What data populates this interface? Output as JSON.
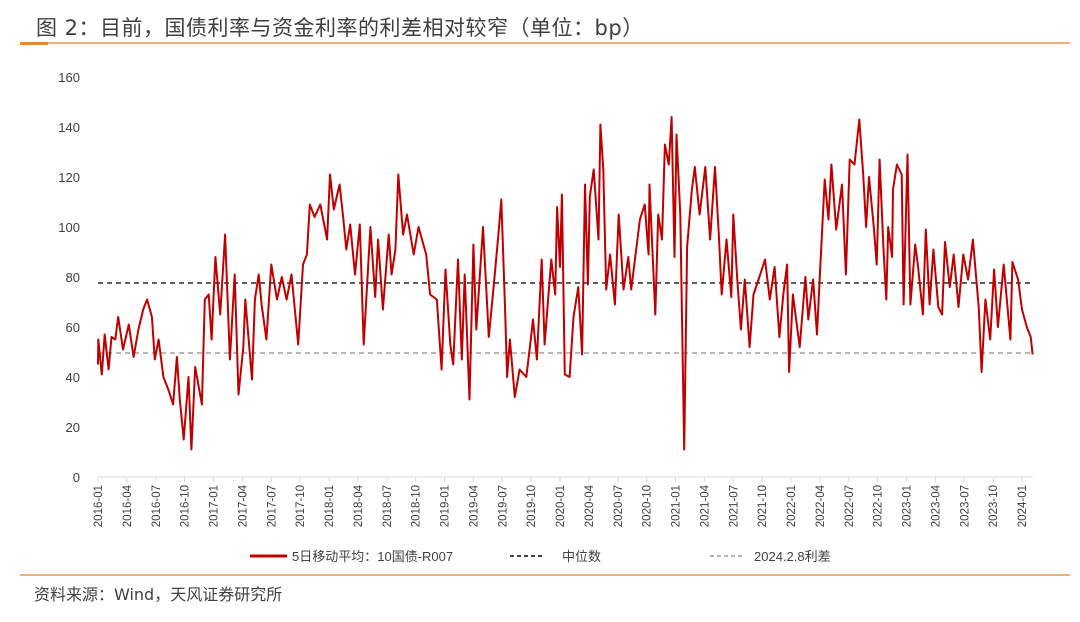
{
  "header": {
    "title": "图 2：目前，国债利率与资金利率的利差相对较窄（单位：bp）"
  },
  "footer": {
    "source": "资料来源：Wind，天风证券研究所"
  },
  "colors": {
    "series": "#c00000",
    "median": "#000000",
    "ref": "#808080",
    "rule": "#f0b27a"
  },
  "chart_data": {
    "type": "line",
    "title": "目前，国债利率与资金利率的利差相对较窄",
    "ylabel": "bp",
    "ylim": [
      0,
      160
    ],
    "yticks": [
      0,
      20,
      40,
      60,
      80,
      100,
      120,
      140,
      160
    ],
    "x_unit": "months since 2016-01",
    "xticks": [
      "2016-01",
      "2016-04",
      "2016-07",
      "2016-10",
      "2017-01",
      "2017-04",
      "2017-07",
      "2017-10",
      "2018-01",
      "2018-04",
      "2018-07",
      "2018-10",
      "2019-01",
      "2019-04",
      "2019-07",
      "2019-10",
      "2020-01",
      "2020-04",
      "2020-07",
      "2020-10",
      "2021-01",
      "2021-04",
      "2021-07",
      "2021-10",
      "2022-01",
      "2022-04",
      "2022-07",
      "2022-10",
      "2023-01",
      "2023-04",
      "2023-07",
      "2023-10",
      "2024-01"
    ],
    "legend_position": "bottom",
    "grid": false,
    "series": [
      {
        "name": "5日移动平均：10国债-R007",
        "style": "solid",
        "points": [
          [
            0,
            45
          ],
          [
            0.03,
            55
          ],
          [
            0.4,
            41
          ],
          [
            0.7,
            57
          ],
          [
            1.1,
            43
          ],
          [
            1.4,
            56
          ],
          [
            1.8,
            55
          ],
          [
            2.1,
            64
          ],
          [
            2.6,
            51
          ],
          [
            3.2,
            61
          ],
          [
            3.7,
            48
          ],
          [
            4.2,
            59
          ],
          [
            4.7,
            67
          ],
          [
            5.1,
            71
          ],
          [
            5.6,
            64
          ],
          [
            5.9,
            47
          ],
          [
            6.3,
            55
          ],
          [
            6.8,
            40
          ],
          [
            7.3,
            35
          ],
          [
            7.8,
            29
          ],
          [
            8.2,
            48
          ],
          [
            8.5,
            31
          ],
          [
            8.9,
            15
          ],
          [
            9.4,
            40
          ],
          [
            9.7,
            11
          ],
          [
            10.1,
            44
          ],
          [
            10.8,
            29
          ],
          [
            11.1,
            71
          ],
          [
            11.5,
            73
          ],
          [
            11.8,
            55
          ],
          [
            12.2,
            88
          ],
          [
            12.7,
            65
          ],
          [
            13.2,
            97
          ],
          [
            13.7,
            47
          ],
          [
            14.2,
            81
          ],
          [
            14.6,
            33
          ],
          [
            15.1,
            52
          ],
          [
            15.3,
            71
          ],
          [
            16.0,
            39
          ],
          [
            16.3,
            71
          ],
          [
            16.7,
            81
          ],
          [
            17.0,
            69
          ],
          [
            17.5,
            55
          ],
          [
            18.0,
            85
          ],
          [
            18.6,
            71
          ],
          [
            19.1,
            80
          ],
          [
            19.6,
            71
          ],
          [
            20.1,
            81
          ],
          [
            20.8,
            53
          ],
          [
            21.3,
            85
          ],
          [
            21.7,
            89
          ],
          [
            22.0,
            109
          ],
          [
            22.5,
            104
          ],
          [
            23.1,
            109
          ],
          [
            23.8,
            95
          ],
          [
            24.1,
            121
          ],
          [
            24.5,
            107
          ],
          [
            25.1,
            117
          ],
          [
            25.5,
            103
          ],
          [
            25.8,
            91
          ],
          [
            26.2,
            101
          ],
          [
            26.7,
            81
          ],
          [
            27.2,
            101
          ],
          [
            27.6,
            53
          ],
          [
            28.3,
            100
          ],
          [
            28.8,
            72
          ],
          [
            29.1,
            95
          ],
          [
            29.6,
            67
          ],
          [
            30.2,
            97
          ],
          [
            30.5,
            81
          ],
          [
            30.9,
            91
          ],
          [
            31.2,
            121
          ],
          [
            31.7,
            97
          ],
          [
            32.1,
            105
          ],
          [
            32.8,
            89
          ],
          [
            33.3,
            100
          ],
          [
            34.1,
            89
          ],
          [
            34.5,
            73
          ],
          [
            35.2,
            71
          ],
          [
            35.7,
            43
          ],
          [
            36.1,
            83
          ],
          [
            36.6,
            53
          ],
          [
            36.9,
            45
          ],
          [
            37.4,
            87
          ],
          [
            37.8,
            47
          ],
          [
            38.1,
            81
          ],
          [
            38.6,
            31
          ],
          [
            39.0,
            93
          ],
          [
            39.3,
            59
          ],
          [
            40.0,
            100
          ],
          [
            40.6,
            56
          ],
          [
            41.1,
            76
          ],
          [
            41.6,
            97
          ],
          [
            41.9,
            111
          ],
          [
            42.3,
            67
          ],
          [
            42.5,
            40
          ],
          [
            42.8,
            55
          ],
          [
            43.3,
            32
          ],
          [
            43.8,
            43
          ],
          [
            44.5,
            40
          ],
          [
            44.9,
            53
          ],
          [
            45.2,
            63
          ],
          [
            45.6,
            47
          ],
          [
            46.1,
            87
          ],
          [
            46.4,
            53
          ],
          [
            46.8,
            73
          ],
          [
            47.1,
            87
          ],
          [
            47.5,
            73
          ],
          [
            47.7,
            108
          ],
          [
            48.0,
            84
          ],
          [
            48.2,
            113
          ],
          [
            48.5,
            41
          ],
          [
            49.0,
            40
          ],
          [
            49.4,
            64
          ],
          [
            49.9,
            76
          ],
          [
            50.3,
            49
          ],
          [
            50.6,
            117
          ],
          [
            50.9,
            77
          ],
          [
            51.1,
            112
          ],
          [
            51.5,
            123
          ],
          [
            52.0,
            95
          ],
          [
            52.2,
            141
          ],
          [
            52.5,
            123
          ],
          [
            52.8,
            75
          ],
          [
            53.2,
            89
          ],
          [
            53.7,
            69
          ],
          [
            54.1,
            105
          ],
          [
            54.6,
            75
          ],
          [
            55.1,
            88
          ],
          [
            55.4,
            75
          ],
          [
            56.3,
            103
          ],
          [
            56.8,
            109
          ],
          [
            57.2,
            89
          ],
          [
            57.3,
            117
          ],
          [
            57.9,
            65
          ],
          [
            58.2,
            105
          ],
          [
            58.6,
            95
          ],
          [
            58.9,
            133
          ],
          [
            59.3,
            125
          ],
          [
            59.6,
            144
          ],
          [
            59.9,
            88
          ],
          [
            60.1,
            137
          ],
          [
            60.5,
            105
          ],
          [
            60.9,
            11
          ],
          [
            61.2,
            92
          ],
          [
            61.7,
            115
          ],
          [
            62.0,
            124
          ],
          [
            62.5,
            105
          ],
          [
            63.1,
            124
          ],
          [
            63.6,
            95
          ],
          [
            64.1,
            124
          ],
          [
            64.5,
            97
          ],
          [
            64.8,
            73
          ],
          [
            65.3,
            95
          ],
          [
            65.8,
            72
          ],
          [
            66.0,
            105
          ],
          [
            66.4,
            80
          ],
          [
            66.8,
            59
          ],
          [
            67.2,
            79
          ],
          [
            67.7,
            52
          ],
          [
            68.1,
            73
          ],
          [
            68.8,
            81
          ],
          [
            69.3,
            87
          ],
          [
            69.8,
            71
          ],
          [
            70.3,
            84
          ],
          [
            70.8,
            56
          ],
          [
            71.2,
            73
          ],
          [
            71.6,
            85
          ],
          [
            71.8,
            42
          ],
          [
            72.2,
            73
          ],
          [
            72.9,
            52
          ],
          [
            73.5,
            80
          ],
          [
            73.8,
            63
          ],
          [
            74.3,
            79
          ],
          [
            74.7,
            57
          ],
          [
            75.0,
            81
          ],
          [
            75.5,
            119
          ],
          [
            75.9,
            103
          ],
          [
            76.2,
            125
          ],
          [
            76.7,
            99
          ],
          [
            77.3,
            117
          ],
          [
            77.7,
            81
          ],
          [
            78.1,
            127
          ],
          [
            78.6,
            125
          ],
          [
            79.1,
            143
          ],
          [
            79.5,
            121
          ],
          [
            79.8,
            100
          ],
          [
            80.1,
            120
          ],
          [
            80.6,
            100
          ],
          [
            80.9,
            85
          ],
          [
            81.2,
            127
          ],
          [
            81.6,
            92
          ],
          [
            81.9,
            71
          ],
          [
            82.1,
            100
          ],
          [
            82.5,
            88
          ],
          [
            82.6,
            115
          ],
          [
            83.0,
            125
          ],
          [
            83.5,
            121
          ],
          [
            83.7,
            69
          ],
          [
            84.1,
            129
          ],
          [
            84.4,
            69
          ],
          [
            84.9,
            93
          ],
          [
            85.2,
            84
          ],
          [
            85.7,
            65
          ],
          [
            86.0,
            99
          ],
          [
            86.4,
            69
          ],
          [
            86.8,
            91
          ],
          [
            87.3,
            68
          ],
          [
            87.7,
            65
          ],
          [
            88.0,
            94
          ],
          [
            88.5,
            76
          ],
          [
            88.9,
            89
          ],
          [
            89.4,
            68
          ],
          [
            89.9,
            89
          ],
          [
            90.4,
            79
          ],
          [
            90.9,
            95
          ],
          [
            91.5,
            68
          ],
          [
            91.8,
            42
          ],
          [
            92.2,
            71
          ],
          [
            92.7,
            55
          ],
          [
            93.1,
            83
          ],
          [
            93.5,
            60
          ],
          [
            94.1,
            85
          ],
          [
            94.8,
            55
          ],
          [
            95.0,
            86
          ],
          [
            95.6,
            79
          ],
          [
            96.0,
            67
          ],
          [
            96.5,
            60
          ],
          [
            96.9,
            56
          ],
          [
            97.1,
            49
          ]
        ]
      },
      {
        "name": "中位数",
        "style": "dashed",
        "value": 77.6
      },
      {
        "name": "2024.2.8利差",
        "style": "dashed",
        "value": 49.6
      }
    ]
  }
}
